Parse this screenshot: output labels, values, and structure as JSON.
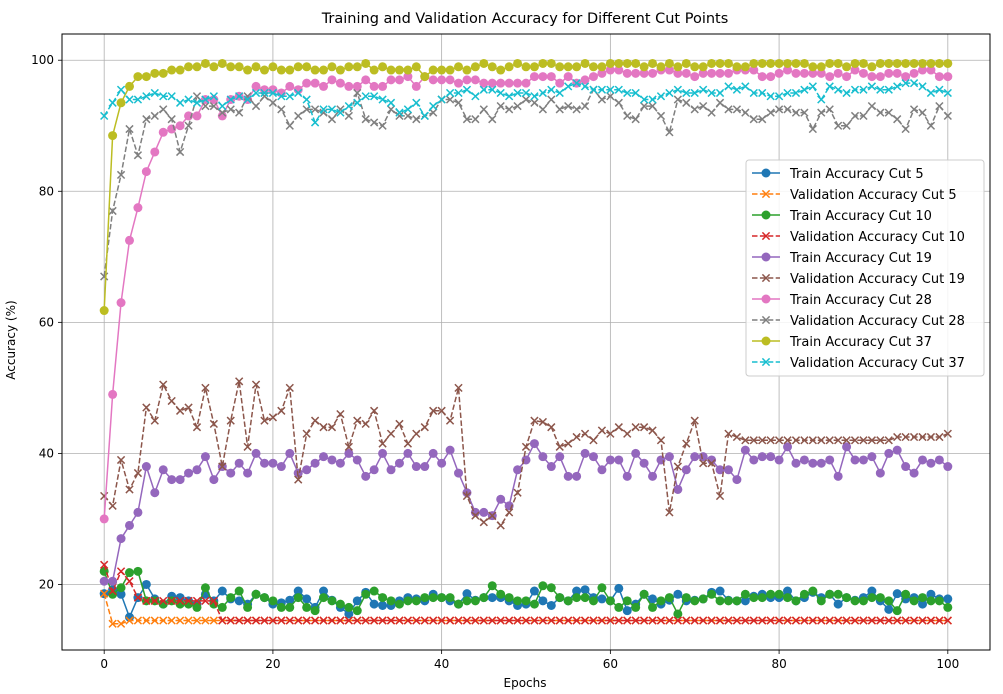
{
  "chart_data": {
    "type": "line",
    "title": "Training and Validation Accuracy for Different Cut Points",
    "xlabel": "Epochs",
    "ylabel": "Accuracy (%)",
    "xlim": [
      -5,
      105
    ],
    "ylim": [
      10,
      104
    ],
    "xticks": [
      0,
      20,
      40,
      60,
      80,
      100
    ],
    "yticks": [
      20,
      40,
      60,
      80,
      100
    ],
    "grid": true,
    "legend_position": "center-right",
    "x": [
      0,
      1,
      2,
      3,
      4,
      5,
      6,
      7,
      8,
      9,
      10,
      11,
      12,
      13,
      14,
      15,
      16,
      17,
      18,
      19,
      20,
      21,
      22,
      23,
      24,
      25,
      26,
      27,
      28,
      29,
      30,
      31,
      32,
      33,
      34,
      35,
      36,
      37,
      38,
      39,
      40,
      41,
      42,
      43,
      44,
      45,
      46,
      47,
      48,
      49,
      50,
      51,
      52,
      53,
      54,
      55,
      56,
      57,
      58,
      59,
      60,
      61,
      62,
      63,
      64,
      65,
      66,
      67,
      68,
      69,
      70,
      71,
      72,
      73,
      74,
      75,
      76,
      77,
      78,
      79,
      80,
      81,
      82,
      83,
      84,
      85,
      86,
      87,
      88,
      89,
      90,
      91,
      92,
      93,
      94,
      95,
      96,
      97,
      98,
      99,
      100
    ],
    "series": [
      {
        "name": "Train Accuracy Cut 5",
        "color": "#1f77b4",
        "linestyle": "solid",
        "marker": "o",
        "values": [
          18.6,
          19.2,
          18.5,
          15.0,
          18.0,
          20.0,
          17.8,
          17.0,
          18.2,
          18.0,
          17.5,
          17.0,
          18.5,
          17.5,
          19.0,
          17.8,
          17.5,
          17.0,
          18.5,
          18.0,
          17.0,
          17.2,
          17.6,
          19.0,
          17.8,
          16.5,
          19.0,
          17.6,
          16.5,
          15.5,
          17.5,
          18.8,
          17.0,
          16.8,
          16.8,
          17.5,
          18.0,
          17.8,
          17.5,
          18.5,
          18.0,
          17.5,
          17.0,
          18.6,
          17.6,
          18.0,
          18.0,
          18.0,
          17.5,
          16.8,
          17.0,
          19.0,
          17.5,
          16.8,
          18.0,
          17.5,
          19.0,
          19.2,
          18.0,
          17.8,
          17.5,
          19.4,
          16.0,
          17.0,
          18.5,
          17.8,
          17.0,
          17.6,
          18.5,
          17.5,
          17.6,
          17.8,
          18.8,
          19.0,
          17.6,
          17.5,
          17.5,
          18.2,
          18.5,
          18.0,
          18.0,
          19.0,
          17.5,
          18.0,
          18.8,
          18.0,
          18.5,
          17.0,
          18.0,
          17.6,
          18.0,
          19.0,
          17.5,
          16.2,
          18.6,
          17.8,
          18.0,
          17.0,
          18.5,
          17.8,
          17.8
        ]
      },
      {
        "name": "Validation Accuracy Cut 5",
        "color": "#ff7f0e",
        "linestyle": "dashed",
        "marker": "x",
        "values": [
          18.6,
          14.0,
          14.0,
          14.5,
          14.5,
          14.5,
          14.5,
          14.5,
          14.5,
          14.5,
          14.5,
          14.5,
          14.5,
          14.5,
          14.5,
          14.5,
          14.5,
          14.5,
          14.5,
          14.5,
          14.5,
          14.5,
          14.5,
          14.5,
          14.5,
          14.5,
          14.5,
          14.5,
          14.5,
          14.5,
          14.5,
          14.5,
          14.5,
          14.5,
          14.5,
          14.5,
          14.5,
          14.5,
          14.5,
          14.5,
          14.5,
          14.5,
          14.5,
          14.5,
          14.5,
          14.5,
          14.5,
          14.5,
          14.5,
          14.5,
          14.5,
          14.5,
          14.5,
          14.5,
          14.5,
          14.5,
          14.5,
          14.5,
          14.5,
          14.5,
          14.5,
          14.5,
          14.5,
          14.5,
          14.5,
          14.5,
          14.5,
          14.5,
          14.5,
          14.5,
          14.5,
          14.5,
          14.5,
          14.5,
          14.5,
          14.5,
          14.5,
          14.5,
          14.5,
          14.5,
          14.5,
          14.5,
          14.5,
          14.5,
          14.5,
          14.5,
          14.5,
          14.5,
          14.5,
          14.5,
          14.5,
          14.5,
          14.5,
          14.5,
          14.5,
          14.5,
          14.5,
          14.5,
          14.5,
          14.5,
          14.5
        ]
      },
      {
        "name": "Train Accuracy Cut 10",
        "color": "#2ca02c",
        "linestyle": "solid",
        "marker": "o",
        "values": [
          22.0,
          18.5,
          19.5,
          21.8,
          22.0,
          17.5,
          17.5,
          17.0,
          17.5,
          17.0,
          17.0,
          16.5,
          19.5,
          17.0,
          16.5,
          18.0,
          19.0,
          16.5,
          18.5,
          18.0,
          17.5,
          16.5,
          16.5,
          18.0,
          16.5,
          16.0,
          18.0,
          17.5,
          17.0,
          16.5,
          16.0,
          18.5,
          19.0,
          18.0,
          17.5,
          17.0,
          17.5,
          17.5,
          18.0,
          18.0,
          18.0,
          18.0,
          17.0,
          17.5,
          17.5,
          18.0,
          19.8,
          18.5,
          18.0,
          17.5,
          17.5,
          17.0,
          19.8,
          19.5,
          18.0,
          17.5,
          18.0,
          18.0,
          17.5,
          19.5,
          17.5,
          16.5,
          17.5,
          16.5,
          18.5,
          16.5,
          17.5,
          18.0,
          15.5,
          18.0,
          17.5,
          17.8,
          18.5,
          17.5,
          17.5,
          17.5,
          18.5,
          18.0,
          18.0,
          18.5,
          18.5,
          18.0,
          17.5,
          18.5,
          19.0,
          17.5,
          18.5,
          18.5,
          18.0,
          17.5,
          17.5,
          18.0,
          18.0,
          17.5,
          16.0,
          18.5,
          17.5,
          18.0,
          17.5,
          17.5,
          16.5
        ]
      },
      {
        "name": "Validation Accuracy Cut 10",
        "color": "#d62728",
        "linestyle": "dashed",
        "marker": "x",
        "values": [
          23.0,
          19.0,
          22.0,
          20.5,
          18.0,
          17.5,
          17.5,
          17.5,
          17.5,
          17.5,
          17.5,
          17.5,
          17.5,
          17.5,
          14.5,
          14.5,
          14.5,
          14.5,
          14.5,
          14.5,
          14.5,
          14.5,
          14.5,
          14.5,
          14.5,
          14.5,
          14.5,
          14.5,
          14.5,
          14.5,
          14.5,
          14.5,
          14.5,
          14.5,
          14.5,
          14.5,
          14.5,
          14.5,
          14.5,
          14.5,
          14.5,
          14.5,
          14.5,
          14.5,
          14.5,
          14.5,
          14.5,
          14.5,
          14.5,
          14.5,
          14.5,
          14.5,
          14.5,
          14.5,
          14.5,
          14.5,
          14.5,
          14.5,
          14.5,
          14.5,
          14.5,
          14.5,
          14.5,
          14.5,
          14.5,
          14.5,
          14.5,
          14.5,
          14.5,
          14.5,
          14.5,
          14.5,
          14.5,
          14.5,
          14.5,
          14.5,
          14.5,
          14.5,
          14.5,
          14.5,
          14.5,
          14.5,
          14.5,
          14.5,
          14.5,
          14.5,
          14.5,
          14.5,
          14.5,
          14.5,
          14.5,
          14.5,
          14.5,
          14.5,
          14.5,
          14.5,
          14.5,
          14.5,
          14.5,
          14.5,
          14.5
        ]
      },
      {
        "name": "Train Accuracy Cut 19",
        "color": "#9467bd",
        "linestyle": "solid",
        "marker": "o",
        "values": [
          20.5,
          20.5,
          27.0,
          29.0,
          31.0,
          38.0,
          34.0,
          37.5,
          36.0,
          36.0,
          37.0,
          37.5,
          39.5,
          36.0,
          38.0,
          37.0,
          38.5,
          37.0,
          40.0,
          38.5,
          38.5,
          38.0,
          40.0,
          37.0,
          37.5,
          38.5,
          39.5,
          39.0,
          38.5,
          40.0,
          39.0,
          36.5,
          37.5,
          40.0,
          37.5,
          38.5,
          40.0,
          38.0,
          38.0,
          40.0,
          38.5,
          40.5,
          37.0,
          34.0,
          31.0,
          31.0,
          30.5,
          33.0,
          32.0,
          37.5,
          39.0,
          41.5,
          39.5,
          38.0,
          39.5,
          36.5,
          36.5,
          40.0,
          39.5,
          37.5,
          39.0,
          39.0,
          36.5,
          40.0,
          38.5,
          36.5,
          39.0,
          39.5,
          34.5,
          37.5,
          39.5,
          39.5,
          39.0,
          37.5,
          37.5,
          36.0,
          40.5,
          39.0,
          39.5,
          39.5,
          39.0,
          41.0,
          38.5,
          39.0,
          38.5,
          38.5,
          39.0,
          36.5,
          41.0,
          39.0,
          39.0,
          39.5,
          37.0,
          40.0,
          40.5,
          38.0,
          37.0,
          39.0,
          38.5,
          39.0,
          38.0
        ]
      },
      {
        "name": "Validation Accuracy Cut 19",
        "color": "#8c564b",
        "linestyle": "dashed",
        "marker": "x",
        "values": [
          33.5,
          32.0,
          39.0,
          34.5,
          37.0,
          47.0,
          45.0,
          50.5,
          48.0,
          46.5,
          47.0,
          44.0,
          50.0,
          44.5,
          38.0,
          45.0,
          51.0,
          41.0,
          50.5,
          45.0,
          45.5,
          46.5,
          50.0,
          36.0,
          43.0,
          45.0,
          44.0,
          44.0,
          46.0,
          41.0,
          45.0,
          44.5,
          46.5,
          41.5,
          43.0,
          44.5,
          41.5,
          43.0,
          44.0,
          46.5,
          46.5,
          45.0,
          50.0,
          33.5,
          30.5,
          29.5,
          30.5,
          29.0,
          31.0,
          34.0,
          41.0,
          45.0,
          44.8,
          44.0,
          41.0,
          41.5,
          42.5,
          43.0,
          42.0,
          43.5,
          43.0,
          44.0,
          43.0,
          44.0,
          44.0,
          43.5,
          42.0,
          31.0,
          38.0,
          41.5,
          45.0,
          38.5,
          38.5,
          33.5,
          43.0,
          42.5,
          42.0,
          42.0,
          42.0,
          42.0,
          42.0,
          42.0,
          42.0,
          42.0,
          42.0,
          42.0,
          42.0,
          42.0,
          42.0,
          42.0,
          42.0,
          42.0,
          42.0,
          42.0,
          42.5,
          42.5,
          42.5,
          42.5,
          42.5,
          42.5,
          43.0
        ]
      },
      {
        "name": "Train Accuracy Cut 28",
        "color": "#e377c2",
        "linestyle": "solid",
        "marker": "o",
        "values": [
          30.0,
          49.0,
          63.0,
          72.5,
          77.5,
          83.0,
          86.0,
          89.0,
          89.5,
          90.0,
          91.5,
          91.5,
          94.0,
          94.0,
          91.5,
          94.0,
          94.5,
          94.0,
          96.0,
          95.5,
          95.5,
          95.0,
          96.0,
          95.5,
          96.5,
          96.5,
          96.0,
          97.0,
          96.5,
          96.0,
          96.0,
          97.0,
          96.0,
          96.0,
          97.0,
          97.0,
          97.5,
          96.0,
          97.5,
          97.0,
          97.0,
          97.0,
          96.5,
          97.0,
          97.0,
          96.5,
          96.5,
          96.5,
          96.5,
          96.5,
          96.5,
          97.5,
          97.5,
          97.5,
          96.5,
          97.5,
          96.5,
          97.0,
          97.5,
          98.0,
          98.5,
          98.5,
          98.0,
          98.0,
          98.0,
          98.0,
          98.5,
          98.5,
          98.0,
          98.0,
          97.5,
          98.0,
          98.0,
          98.0,
          98.0,
          98.5,
          98.5,
          98.5,
          97.5,
          97.5,
          98.0,
          98.5,
          98.0,
          98.0,
          98.0,
          98.0,
          97.5,
          98.0,
          97.5,
          98.5,
          98.0,
          97.5,
          97.5,
          98.0,
          98.0,
          97.5,
          98.0,
          98.5,
          98.5,
          97.5,
          97.5
        ]
      },
      {
        "name": "Validation Accuracy Cut 28",
        "color": "#7f7f7f",
        "linestyle": "dashed",
        "marker": "x",
        "values": [
          67.0,
          77.0,
          82.5,
          89.5,
          85.5,
          91.0,
          91.5,
          92.5,
          91.0,
          86.0,
          90.0,
          94.5,
          93.0,
          93.0,
          92.0,
          92.5,
          92.0,
          94.5,
          93.0,
          94.5,
          93.5,
          92.5,
          90.0,
          91.5,
          92.5,
          92.5,
          92.0,
          91.0,
          92.5,
          91.5,
          95.0,
          91.0,
          90.5,
          90.0,
          92.5,
          91.5,
          91.5,
          91.0,
          91.5,
          92.0,
          94.0,
          94.0,
          93.5,
          91.0,
          91.0,
          92.5,
          91.0,
          93.0,
          92.5,
          93.0,
          94.0,
          93.5,
          92.5,
          94.0,
          92.5,
          93.0,
          92.5,
          93.0,
          95.5,
          94.0,
          94.5,
          93.5,
          91.5,
          91.0,
          93.0,
          93.0,
          91.5,
          89.0,
          94.0,
          93.5,
          92.5,
          93.0,
          92.0,
          93.5,
          92.5,
          92.5,
          92.0,
          91.0,
          91.0,
          92.0,
          92.5,
          92.5,
          92.0,
          92.0,
          89.5,
          92.0,
          92.5,
          90.0,
          90.0,
          91.5,
          91.5,
          93.0,
          92.0,
          92.0,
          91.0,
          89.5,
          92.5,
          92.0,
          90.0,
          93.0,
          91.5
        ]
      },
      {
        "name": "Train Accuracy Cut 37",
        "color": "#bcbd22",
        "linestyle": "solid",
        "marker": "o",
        "values": [
          61.8,
          88.5,
          93.5,
          96.0,
          97.5,
          97.5,
          98.0,
          98.0,
          98.5,
          98.5,
          99.0,
          99.0,
          99.5,
          99.0,
          99.5,
          99.0,
          99.0,
          98.5,
          99.0,
          98.5,
          99.0,
          98.5,
          98.5,
          99.0,
          99.0,
          98.5,
          98.5,
          99.0,
          98.5,
          99.0,
          99.0,
          99.5,
          98.5,
          99.0,
          98.5,
          98.5,
          98.5,
          99.0,
          97.5,
          98.5,
          98.5,
          98.5,
          99.0,
          98.5,
          99.0,
          99.5,
          99.0,
          98.5,
          99.0,
          99.5,
          99.0,
          99.0,
          99.5,
          99.5,
          99.0,
          99.0,
          99.0,
          99.5,
          99.0,
          99.0,
          99.5,
          99.5,
          99.5,
          99.5,
          99.0,
          99.5,
          99.0,
          99.5,
          99.0,
          99.5,
          99.0,
          99.0,
          99.5,
          99.5,
          99.5,
          99.0,
          99.0,
          99.5,
          99.5,
          99.5,
          99.5,
          99.5,
          99.5,
          99.5,
          99.0,
          99.0,
          99.5,
          99.5,
          99.0,
          99.5,
          99.5,
          99.0,
          99.5,
          99.5,
          99.5,
          99.5,
          99.5,
          99.5,
          99.5,
          99.5,
          99.5
        ]
      },
      {
        "name": "Validation Accuracy Cut 37",
        "color": "#17becf",
        "linestyle": "dashed",
        "marker": "x",
        "values": [
          91.5,
          93.5,
          95.5,
          94.0,
          94.0,
          94.5,
          95.0,
          94.5,
          94.5,
          93.5,
          94.0,
          93.5,
          94.0,
          94.5,
          93.0,
          94.0,
          94.5,
          94.0,
          95.0,
          95.0,
          95.0,
          94.5,
          94.5,
          95.0,
          94.0,
          90.5,
          92.5,
          92.5,
          92.0,
          93.0,
          93.5,
          94.5,
          94.5,
          94.0,
          93.5,
          92.0,
          92.5,
          93.5,
          91.5,
          93.0,
          94.0,
          95.0,
          95.0,
          95.5,
          94.5,
          95.5,
          95.5,
          95.0,
          94.5,
          95.0,
          95.0,
          94.5,
          95.0,
          95.5,
          95.0,
          96.0,
          96.5,
          96.0,
          95.5,
          95.5,
          95.5,
          95.5,
          95.0,
          95.0,
          94.0,
          94.0,
          94.5,
          95.0,
          95.5,
          95.0,
          95.0,
          95.5,
          95.0,
          95.0,
          96.0,
          95.5,
          96.0,
          95.0,
          95.0,
          94.5,
          94.5,
          95.0,
          95.0,
          95.5,
          96.0,
          94.0,
          96.0,
          95.5,
          95.0,
          95.5,
          95.5,
          96.0,
          95.5,
          95.5,
          96.0,
          96.5,
          96.5,
          96.0,
          95.0,
          95.5,
          95.0
        ]
      }
    ]
  }
}
